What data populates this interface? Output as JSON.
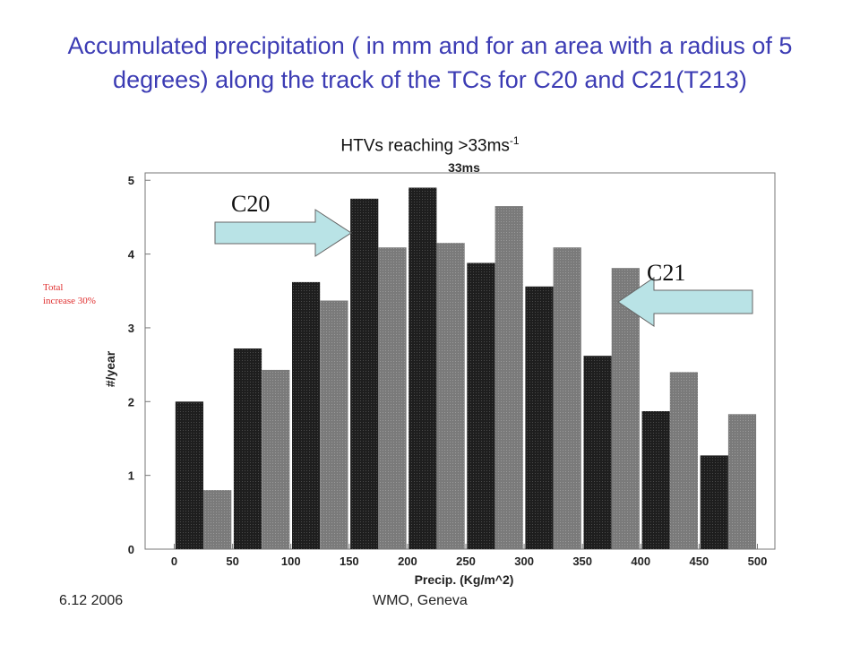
{
  "slide": {
    "title": "Accumulated precipitation ( in mm and for an area with a radius of 5 degrees) along the track of the TCs for C20 and C21(T213)",
    "subtitle_main": "HTVs reaching >33ms",
    "subtitle_sup": "-1",
    "side_note": "Total increase 30%",
    "footer_date": "6.12 2006",
    "footer_org": "WMO, Geneva"
  },
  "colors": {
    "title": "#3c3cb4",
    "c20_bar": "#1e1e1e",
    "c21_bar": "#7a7a7a",
    "arrow_fill": "#b9e3e6",
    "side_note": "#e03030"
  },
  "chart_data": {
    "type": "bar",
    "title": "33ms",
    "xlabel": "Precip. (Kg/m^2)",
    "ylabel": "#/year",
    "x_ticks": [
      0,
      50,
      100,
      150,
      200,
      250,
      300,
      350,
      400,
      450,
      500
    ],
    "y_ticks": [
      0,
      1,
      2,
      3,
      4,
      5
    ],
    "xlim": [
      -25,
      515
    ],
    "ylim": [
      0,
      5.1
    ],
    "categories": [
      25,
      75,
      125,
      175,
      225,
      275,
      325,
      375,
      425,
      475
    ],
    "series": [
      {
        "name": "C20",
        "values": [
          2.0,
          2.72,
          3.62,
          4.75,
          4.9,
          3.88,
          3.56,
          2.62,
          1.87,
          1.27
        ]
      },
      {
        "name": "C21",
        "values": [
          0.8,
          2.43,
          3.37,
          4.09,
          4.15,
          4.65,
          4.09,
          3.81,
          2.4,
          1.83
        ]
      }
    ],
    "annotations": [
      {
        "text": "C20",
        "points_to": "C20 bar at 175"
      },
      {
        "text": "C21",
        "points_to": "C21 bar at 375"
      }
    ],
    "grid": false
  }
}
